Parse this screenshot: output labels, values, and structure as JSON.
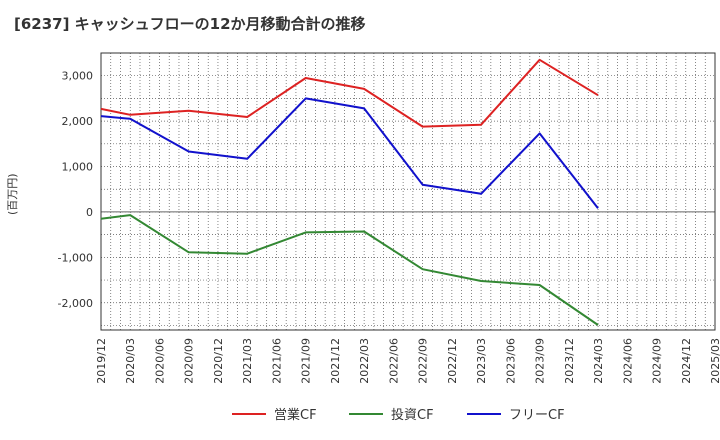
{
  "chart_data": {
    "type": "line",
    "title": "[6237]  キャッシュフローの12か月移動合計の推移",
    "ylabel": "(百万円)",
    "xlabel": "",
    "x": [
      "2019/12",
      "2020/03",
      "2020/06",
      "2020/09",
      "2020/12",
      "2021/03",
      "2021/06",
      "2021/09",
      "2021/12",
      "2022/03",
      "2022/06",
      "2022/09",
      "2022/12",
      "2023/03",
      "2023/06",
      "2023/09",
      "2023/12",
      "2024/03",
      "2024/06",
      "2024/09",
      "2024/12",
      "2025/03"
    ],
    "ylim": [
      -2600,
      3500
    ],
    "yticks": [
      -2000,
      -1000,
      0,
      1000,
      2000,
      3000
    ],
    "ytick_labels": [
      "-2,000",
      "-1,000",
      "0",
      "1,000",
      "2,000",
      "3,000"
    ],
    "grid": true,
    "legend_position": "bottom-center",
    "series": [
      {
        "name": "営業CF",
        "color": "#dd2222",
        "values": [
          2270,
          2140,
          null,
          2230,
          null,
          2090,
          null,
          2950,
          null,
          2710,
          null,
          1880,
          null,
          1920,
          null,
          3350,
          null,
          2570,
          null,
          null,
          null,
          null
        ]
      },
      {
        "name": "投資CF",
        "color": "#338833",
        "values": [
          -150,
          -70,
          null,
          -890,
          null,
          -920,
          null,
          -450,
          null,
          -430,
          null,
          -1260,
          null,
          -1520,
          null,
          -1610,
          null,
          -2490,
          null,
          null,
          null,
          null
        ]
      },
      {
        "name": "フリーCF",
        "color": "#1111cc",
        "values": [
          2110,
          2050,
          null,
          1330,
          null,
          1170,
          null,
          2500,
          null,
          2280,
          null,
          600,
          null,
          400,
          null,
          1730,
          null,
          80,
          null,
          null,
          null,
          null
        ]
      }
    ]
  }
}
